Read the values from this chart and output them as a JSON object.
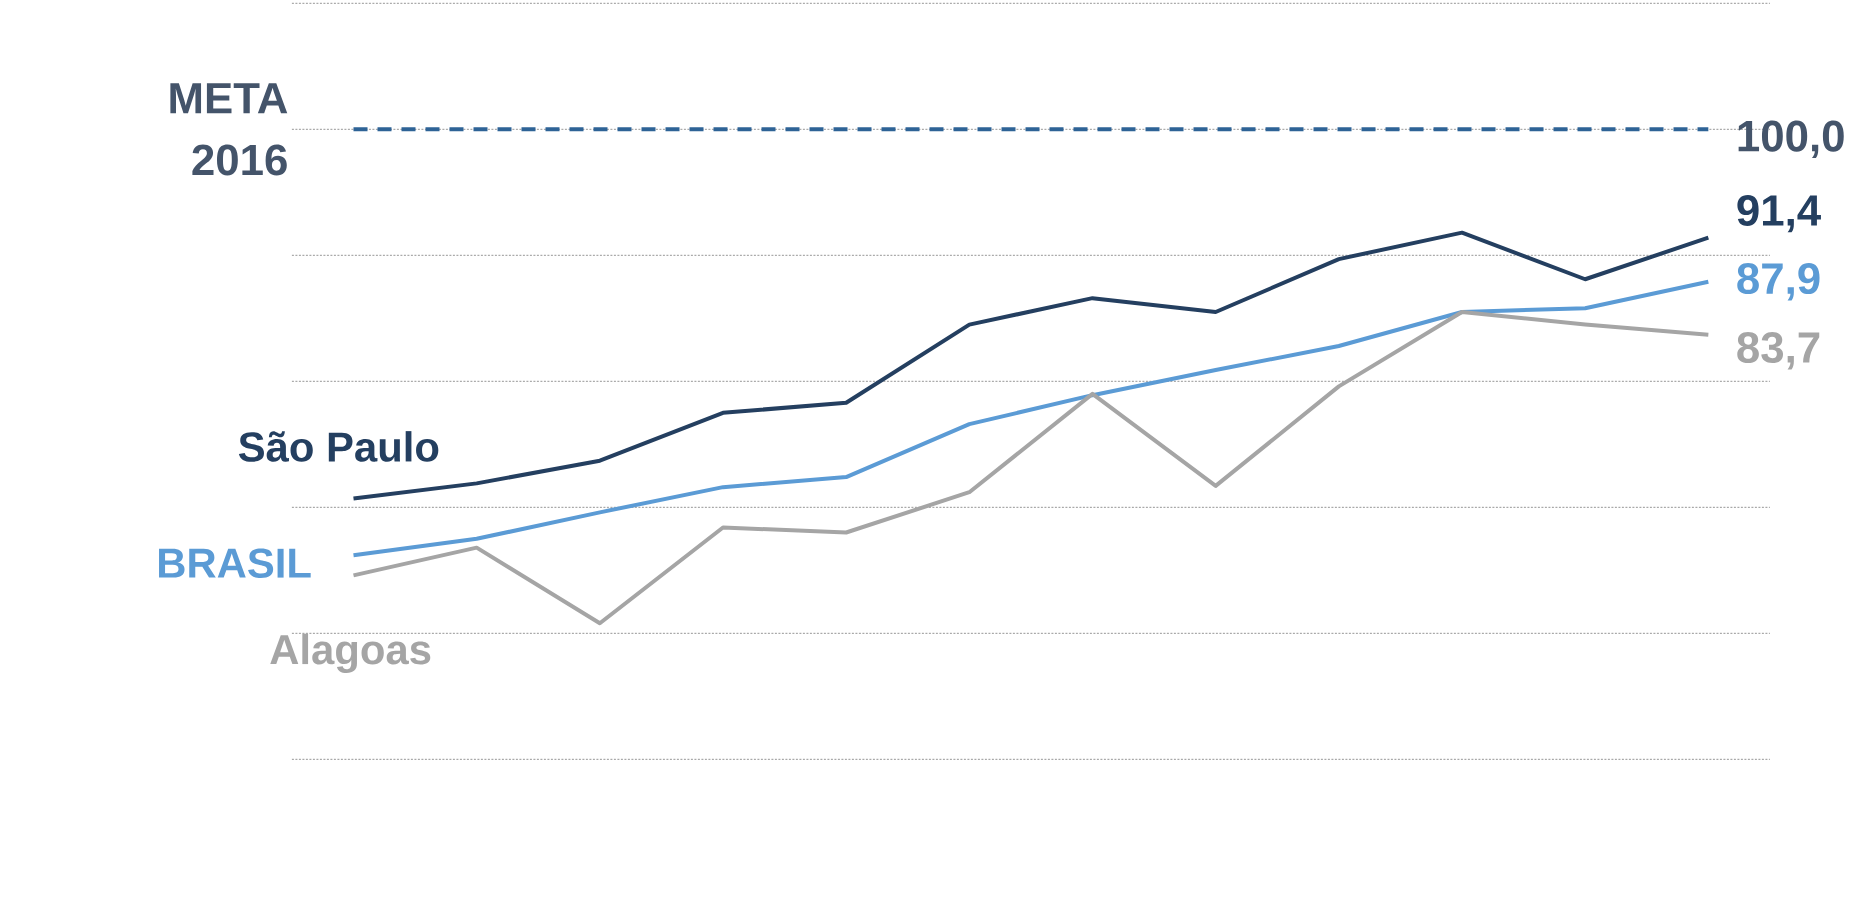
{
  "chart_data": {
    "type": "line",
    "categories": [
      null,
      null,
      null,
      null,
      null,
      null,
      null,
      null,
      null,
      null,
      null,
      null
    ],
    "series": [
      {
        "name": "São Paulo",
        "color": "#243f60",
        "values": [
          70.7,
          71.9,
          73.7,
          77.5,
          78.3,
          84.5,
          86.6,
          85.5,
          89.7,
          91.8,
          88.1,
          91.4
        ],
        "value_labels": [
          null,
          null,
          null,
          null,
          null,
          null,
          null,
          null,
          null,
          null,
          null,
          "91,4"
        ]
      },
      {
        "name": "BRASIL",
        "color": "#5b9bd5",
        "values": [
          66.2,
          67.5,
          69.6,
          71.6,
          72.4,
          76.6,
          78.9,
          80.9,
          82.8,
          85.5,
          85.8,
          87.9
        ],
        "value_labels": [
          null,
          null,
          null,
          null,
          null,
          null,
          null,
          null,
          null,
          null,
          null,
          "87,9"
        ]
      },
      {
        "name": "Alagoas",
        "color": "#a5a5a5",
        "values": [
          64.6,
          66.8,
          60.8,
          68.4,
          68.0,
          71.2,
          79.0,
          71.7,
          79.6,
          85.5,
          84.5,
          83.7
        ],
        "value_labels": [
          null,
          null,
          null,
          null,
          null,
          null,
          null,
          null,
          null,
          null,
          null,
          "83,7"
        ]
      }
    ],
    "ylim": [
      50,
      110
    ],
    "yticks": [
      {
        "value": 50,
        "label": null
      },
      {
        "value": 60,
        "label": null
      },
      {
        "value": 70,
        "label": null
      },
      {
        "value": 80,
        "label": null
      },
      {
        "value": 90,
        "label": null
      },
      {
        "value": 100,
        "label": null
      },
      {
        "value": 110,
        "label": null
      }
    ],
    "grid": "y",
    "marker": "none",
    "line_style": "solid",
    "ref_lines": [
      {
        "axis": "y",
        "value": 100,
        "label": "META 2016",
        "color": "#2e6396",
        "line_style": "dashed"
      }
    ],
    "annotations": [
      "100,0"
    ]
  }
}
